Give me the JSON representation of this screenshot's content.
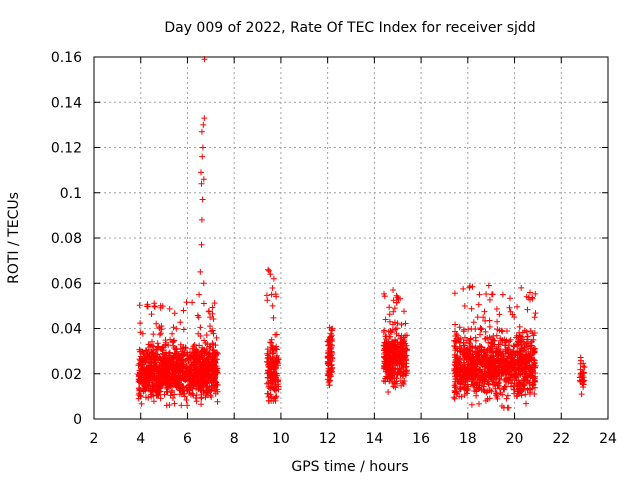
{
  "chart_data": {
    "type": "scatter",
    "title": "Day 009 of 2022, Rate Of TEC Index for receiver sjdd",
    "xlabel": "GPS time / hours",
    "ylabel": "ROTI / TECUs",
    "xlim": [
      2,
      24
    ],
    "ylim": [
      0,
      0.16
    ],
    "xticks": [
      2,
      4,
      6,
      8,
      10,
      12,
      14,
      16,
      18,
      20,
      22,
      24
    ],
    "xtick_labels": [
      "2",
      "4",
      "6",
      "8",
      "10",
      "12",
      "14",
      "16",
      "18",
      "20",
      "22",
      "24"
    ],
    "yticks": [
      0,
      0.02,
      0.04,
      0.06,
      0.08,
      0.1,
      0.12,
      0.14,
      0.16
    ],
    "ytick_labels": [
      "0",
      "0.02",
      "0.04",
      "0.06",
      "0.08",
      "0.1",
      "0.12",
      "0.14",
      "0.16"
    ],
    "grid": true,
    "marker": "+",
    "series_color": "#ff0000",
    "clusters": [
      {
        "x_range": [
          3.9,
          7.3
        ],
        "y_center": 0.021,
        "y_spread": 0.008,
        "y_min": 0.006,
        "y_max": 0.052,
        "count": 1200
      },
      {
        "x_range": [
          9.4,
          9.9
        ],
        "y_center": 0.02,
        "y_spread": 0.01,
        "y_min": 0.008,
        "y_max": 0.066,
        "count": 160
      },
      {
        "x_range": [
          12.0,
          12.2
        ],
        "y_center": 0.027,
        "y_spread": 0.008,
        "y_min": 0.015,
        "y_max": 0.045,
        "count": 90
      },
      {
        "x_range": [
          14.4,
          15.4
        ],
        "y_center": 0.027,
        "y_spread": 0.008,
        "y_min": 0.009,
        "y_max": 0.057,
        "count": 350
      },
      {
        "x_range": [
          17.4,
          20.9
        ],
        "y_center": 0.024,
        "y_spread": 0.01,
        "y_min": 0.005,
        "y_max": 0.059,
        "count": 1100
      },
      {
        "x_range": [
          22.8,
          23.0
        ],
        "y_center": 0.019,
        "y_spread": 0.004,
        "y_min": 0.011,
        "y_max": 0.029,
        "count": 30
      }
    ],
    "outliers": [
      {
        "x": 6.55,
        "y": 0.065
      },
      {
        "x": 6.6,
        "y": 0.077
      },
      {
        "x": 6.62,
        "y": 0.088
      },
      {
        "x": 6.65,
        "y": 0.097
      },
      {
        "x": 6.6,
        "y": 0.104
      },
      {
        "x": 6.7,
        "y": 0.106
      },
      {
        "x": 6.58,
        "y": 0.109
      },
      {
        "x": 6.63,
        "y": 0.116
      },
      {
        "x": 6.66,
        "y": 0.12
      },
      {
        "x": 6.62,
        "y": 0.127
      },
      {
        "x": 6.68,
        "y": 0.13
      },
      {
        "x": 6.72,
        "y": 0.133
      },
      {
        "x": 6.73,
        "y": 0.159
      },
      {
        "x": 6.5,
        "y": 0.055
      },
      {
        "x": 6.7,
        "y": 0.06
      },
      {
        "x": 9.45,
        "y": 0.066
      },
      {
        "x": 9.55,
        "y": 0.064
      },
      {
        "x": 9.7,
        "y": 0.062
      },
      {
        "x": 9.6,
        "y": 0.055
      },
      {
        "x": 9.65,
        "y": 0.05
      },
      {
        "x": 18.9,
        "y": 0.059
      },
      {
        "x": 18.5,
        "y": 0.055
      },
      {
        "x": 19.5,
        "y": 0.055
      },
      {
        "x": 14.8,
        "y": 0.057
      }
    ]
  }
}
